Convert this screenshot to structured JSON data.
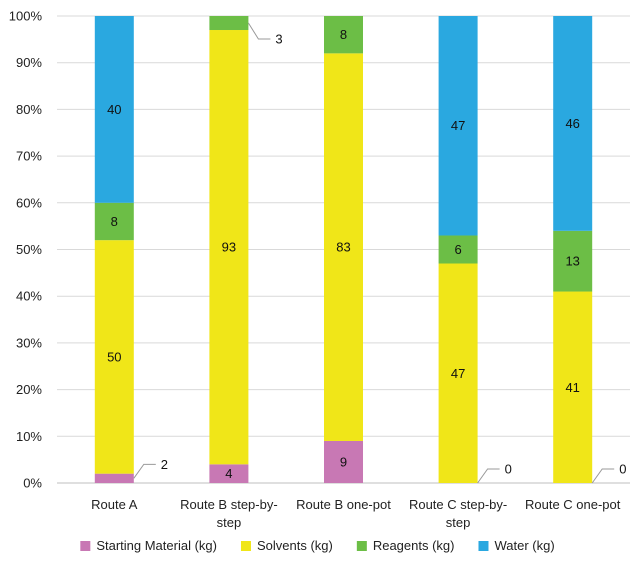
{
  "chart_data": {
    "type": "bar",
    "stacked": true,
    "percent_stacked": true,
    "categories": [
      "Route A",
      "Route B step-by-step",
      "Route B one-pot",
      "Route C step-by-step",
      "Route C one-pot"
    ],
    "category_label_lines": [
      [
        "Route A"
      ],
      [
        "Route B step-by-",
        "step"
      ],
      [
        "Route B one-pot"
      ],
      [
        "Route C step-by-",
        "step"
      ],
      [
        "Route C one-pot"
      ]
    ],
    "series": [
      {
        "name": "Starting Material (kg)",
        "color": "#c878b4",
        "values": [
          2,
          4,
          9,
          0,
          0
        ],
        "labels": [
          "2",
          "4",
          "9",
          "0",
          "0"
        ]
      },
      {
        "name": "Solvents (kg)",
        "color": "#f0e618",
        "values": [
          50,
          93,
          83,
          47,
          41
        ],
        "labels": [
          "50",
          "93",
          "83",
          "47",
          "41"
        ]
      },
      {
        "name": "Reagents (kg)",
        "color": "#6cbe46",
        "values": [
          8,
          3,
          8,
          6,
          13
        ],
        "labels": [
          "8",
          "3",
          "8",
          "6",
          "13"
        ]
      },
      {
        "name": "Water (kg)",
        "color": "#2aa8e0",
        "values": [
          40,
          0,
          0,
          47,
          46
        ],
        "labels": [
          "40",
          "",
          "",
          "47",
          "46"
        ]
      }
    ],
    "ylim": [
      0,
      100
    ],
    "yticks": [
      "0%",
      "10%",
      "20%",
      "30%",
      "40%",
      "50%",
      "60%",
      "70%",
      "80%",
      "90%",
      "100%"
    ],
    "legend_position": "bottom",
    "grid": true
  }
}
